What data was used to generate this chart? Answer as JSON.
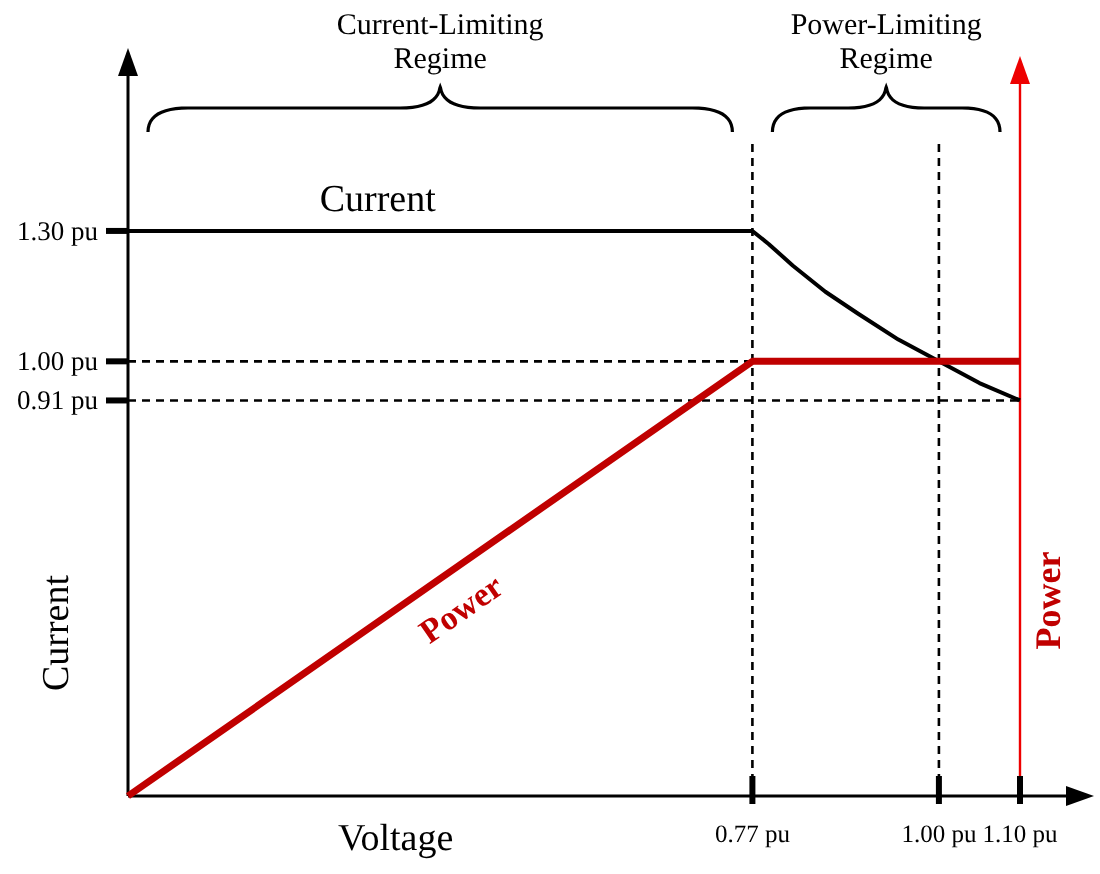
{
  "chart_data": {
    "type": "line",
    "xlabel": "Voltage",
    "ylabel": "Current",
    "y2label": "Power",
    "xlim": [
      0,
      1.1
    ],
    "ylim": [
      0,
      1.5
    ],
    "xticks": [
      {
        "value": 0.77,
        "label": "0.77 pu"
      },
      {
        "value": 1,
        "label": "1.00 pu"
      },
      {
        "value": 1.1,
        "label": "1.10 pu"
      }
    ],
    "yticks": [
      {
        "value": 0.91,
        "label": "0.91 pu"
      },
      {
        "value": 1,
        "label": "1.00 pu"
      },
      {
        "value": 1.3,
        "label": "1.30 pu"
      }
    ],
    "line_style": "solid",
    "series": [
      {
        "name": "Current",
        "color": "#000000",
        "x": [
          0,
          0.77,
          0.79,
          0.82,
          0.86,
          0.9,
          0.95,
          1,
          1.05,
          1.1
        ],
        "values": [
          1.3,
          1.3,
          1.27,
          1.22,
          1.16,
          1.11,
          1.05,
          1,
          0.95,
          0.91
        ]
      },
      {
        "name": "Power",
        "color": "#c00000",
        "x": [
          0,
          0.77,
          1.1
        ],
        "values": [
          0,
          1,
          1
        ]
      }
    ],
    "ref_lines": [
      {
        "axis": "y",
        "value": 1,
        "color": "#000000",
        "line_style": "dashed"
      },
      {
        "axis": "y",
        "value": 0.91,
        "color": "#000000",
        "line_style": "dashed"
      },
      {
        "axis": "x",
        "value": 0.77,
        "color": "#000000",
        "line_style": "dashed"
      },
      {
        "axis": "x",
        "value": 1,
        "color": "#000000",
        "line_style": "dashed"
      }
    ],
    "annotations": [
      "Current-Limiting Regime",
      "Power-Limiting Regime"
    ]
  }
}
